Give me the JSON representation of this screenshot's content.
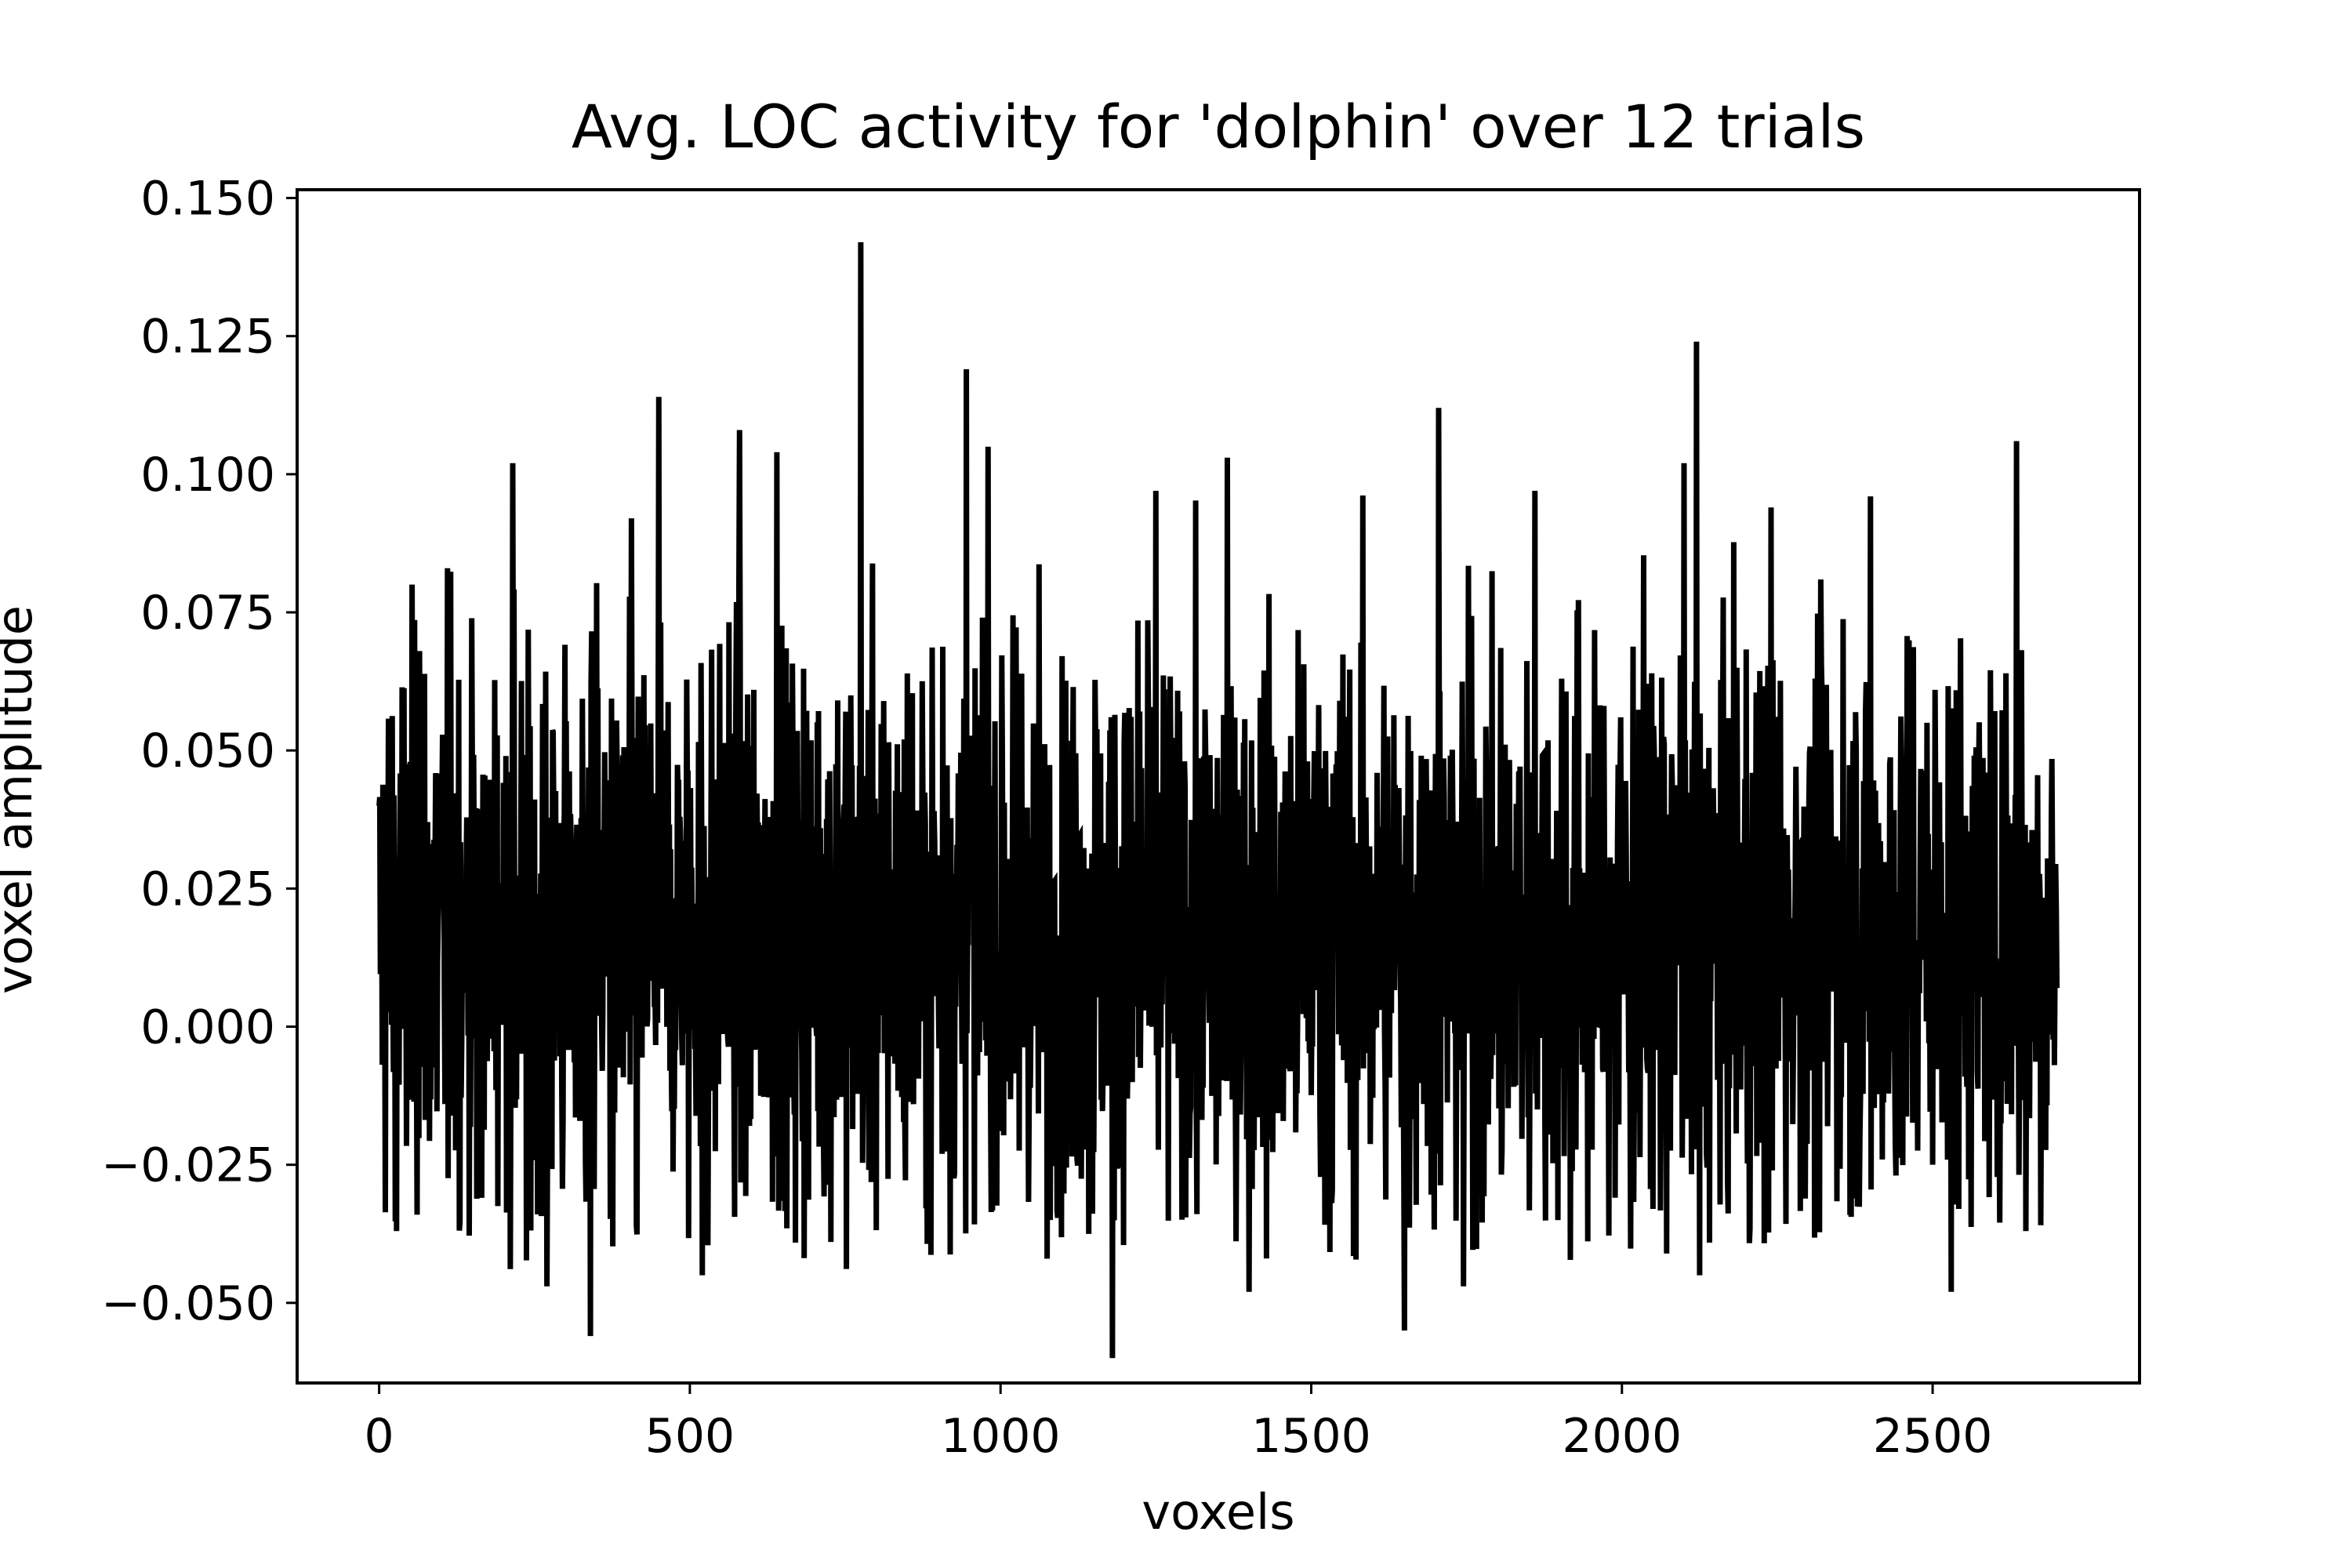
{
  "chart_data": {
    "type": "line",
    "title": "Avg. LOC activity for 'dolphin' over 12 trials",
    "xlabel": "voxels",
    "ylabel": "voxel amplitude",
    "xlim": [
      -132,
      2833
    ],
    "ylim": [
      -0.0645,
      0.1515
    ],
    "x_ticks": [
      0,
      500,
      1000,
      1500,
      2000,
      2500
    ],
    "x_tick_labels": [
      "0",
      "500",
      "1000",
      "1500",
      "2000",
      "2500"
    ],
    "y_ticks": [
      -0.05,
      -0.025,
      0.0,
      0.025,
      0.05,
      0.075,
      0.1,
      0.125,
      0.15
    ],
    "y_tick_labels": [
      "−0.050",
      "−0.025",
      "0.000",
      "0.025",
      "0.050",
      "0.075",
      "0.100",
      "0.125",
      "0.150"
    ],
    "grid": false,
    "series": [
      {
        "color": "#000000",
        "n_points": 2701,
        "x_start": 0,
        "x_step": 1,
        "mean": 0.017,
        "std": 0.026,
        "values_note_free": true,
        "peaks": [
          {
            "x": 0,
            "y": 0.04
          },
          {
            "x": 28,
            "y": -0.037
          },
          {
            "x": 65,
            "y": 0.068
          },
          {
            "x": 110,
            "y": 0.083
          },
          {
            "x": 165,
            "y": -0.031
          },
          {
            "x": 215,
            "y": 0.102
          },
          {
            "x": 270,
            "y": -0.047
          },
          {
            "x": 340,
            "y": -0.056
          },
          {
            "x": 450,
            "y": 0.114
          },
          {
            "x": 520,
            "y": -0.045
          },
          {
            "x": 580,
            "y": 0.108
          },
          {
            "x": 640,
            "y": 0.104
          },
          {
            "x": 775,
            "y": 0.142
          },
          {
            "x": 945,
            "y": 0.119
          },
          {
            "x": 980,
            "y": 0.105
          },
          {
            "x": 1180,
            "y": -0.06
          },
          {
            "x": 1250,
            "y": 0.097
          },
          {
            "x": 1365,
            "y": 0.103
          },
          {
            "x": 1400,
            "y": -0.048
          },
          {
            "x": 1650,
            "y": -0.055
          },
          {
            "x": 1705,
            "y": 0.112
          },
          {
            "x": 1745,
            "y": -0.047
          },
          {
            "x": 1860,
            "y": 0.097
          },
          {
            "x": 2100,
            "y": 0.102
          },
          {
            "x": 2120,
            "y": 0.124
          },
          {
            "x": 2125,
            "y": -0.045
          },
          {
            "x": 2240,
            "y": 0.094
          },
          {
            "x": 2400,
            "y": 0.096
          },
          {
            "x": 2530,
            "y": -0.048
          },
          {
            "x": 2635,
            "y": 0.106
          },
          {
            "x": 2650,
            "y": -0.037
          },
          {
            "x": 2700,
            "y": 0.007
          }
        ]
      }
    ]
  }
}
